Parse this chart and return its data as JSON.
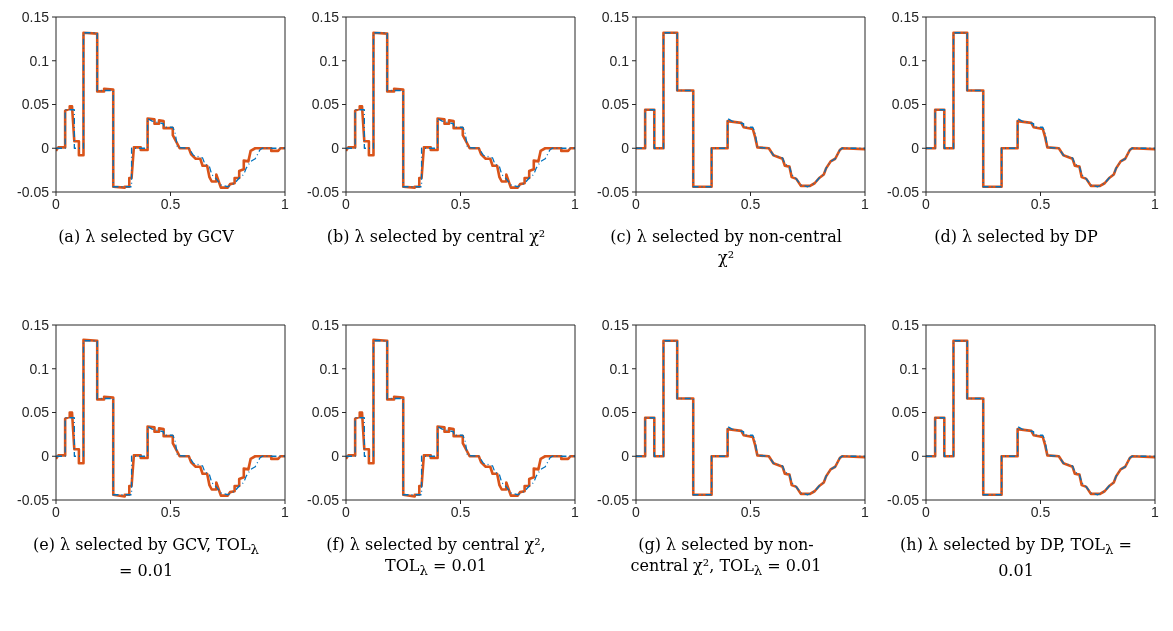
{
  "chart_data": [
    {
      "type": "line",
      "title": "(a) λ selected by GCV",
      "xlim": [
        0,
        1
      ],
      "ylim": [
        -0.05,
        0.15
      ],
      "xticks": [
        0,
        0.5,
        1
      ],
      "yticks": [
        -0.05,
        0,
        0.05,
        0.1,
        0.15
      ],
      "grid": false,
      "legend": false,
      "series": [
        {
          "color": "#0072bd",
          "line_style": "dashed",
          "x": [
            0,
            0.04,
            0.04,
            0.08,
            0.08,
            0.12,
            0.12,
            0.18,
            0.18,
            0.25,
            0.25,
            0.33,
            0.33,
            0.4,
            0.4,
            0.42,
            0.47,
            0.47,
            0.51,
            0.52,
            0.53,
            0.58,
            0.6,
            0.64,
            0.65,
            0.67,
            0.68,
            0.7,
            0.72,
            0.75,
            0.78,
            0.8,
            0.82,
            0.83,
            0.85,
            0.87,
            0.89,
            0.9,
            1
          ],
          "values": [
            0,
            0,
            0.044,
            0.044,
            0,
            0,
            0.132,
            0.132,
            0.066,
            0.066,
            -0.044,
            -0.044,
            0,
            0,
            0.034,
            0.031,
            0.028,
            0.024,
            0.024,
            0.018,
            0.001,
            0,
            -0.008,
            -0.011,
            -0.018,
            -0.021,
            -0.03,
            -0.035,
            -0.042,
            -0.044,
            -0.04,
            -0.034,
            -0.03,
            -0.023,
            -0.015,
            -0.012,
            -0.002,
            0,
            0
          ]
        },
        {
          "color": "#d95319",
          "line_style": "solid",
          "x": [
            0,
            0.01,
            0.04,
            0.04,
            0.06,
            0.06,
            0.07,
            0.08,
            0.1,
            0.1,
            0.12,
            0.12,
            0.18,
            0.18,
            0.21,
            0.21,
            0.25,
            0.25,
            0.3,
            0.3,
            0.32,
            0.32,
            0.33,
            0.34,
            0.37,
            0.37,
            0.4,
            0.4,
            0.43,
            0.43,
            0.45,
            0.45,
            0.47,
            0.47,
            0.51,
            0.51,
            0.54,
            0.58,
            0.59,
            0.61,
            0.63,
            0.64,
            0.66,
            0.67,
            0.68,
            0.7,
            0.7,
            0.72,
            0.75,
            0.76,
            0.78,
            0.78,
            0.8,
            0.8,
            0.82,
            0.82,
            0.84,
            0.85,
            0.87,
            0.94,
            0.94,
            0.97,
            0.98,
            1
          ],
          "values": [
            -0.003,
            0.001,
            0.001,
            0.043,
            0.045,
            0.048,
            0.048,
            0.008,
            0.008,
            -0.008,
            -0.008,
            0.132,
            0.131,
            0.065,
            0.065,
            0.068,
            0.067,
            -0.044,
            -0.045,
            -0.044,
            -0.044,
            -0.034,
            -0.034,
            0.001,
            0.001,
            -0.002,
            -0.002,
            0.034,
            0.033,
            0.028,
            0.028,
            0.032,
            0.031,
            0.023,
            0.023,
            0.015,
            0,
            0,
            -0.007,
            -0.012,
            -0.012,
            -0.02,
            -0.02,
            -0.033,
            -0.038,
            -0.038,
            -0.03,
            -0.045,
            -0.045,
            -0.041,
            -0.04,
            -0.034,
            -0.034,
            -0.026,
            -0.024,
            -0.014,
            -0.015,
            -0.003,
            0,
            0,
            -0.003,
            -0.003,
            0,
            0
          ]
        }
      ]
    },
    {
      "type": "line",
      "title": "(b) λ selected by central χ²",
      "xlim": [
        0,
        1
      ],
      "ylim": [
        -0.05,
        0.15
      ],
      "xticks": [
        0,
        0.5,
        1
      ],
      "yticks": [
        -0.05,
        0,
        0.05,
        0.1,
        0.15
      ],
      "grid": false,
      "legend": false,
      "series": [
        {
          "color": "#0072bd",
          "line_style": "dashed",
          "x": [
            0,
            0.04,
            0.04,
            0.08,
            0.08,
            0.12,
            0.12,
            0.18,
            0.18,
            0.25,
            0.25,
            0.33,
            0.33,
            0.4,
            0.4,
            0.42,
            0.47,
            0.47,
            0.51,
            0.52,
            0.53,
            0.58,
            0.6,
            0.64,
            0.65,
            0.67,
            0.68,
            0.7,
            0.72,
            0.75,
            0.78,
            0.8,
            0.82,
            0.83,
            0.85,
            0.87,
            0.89,
            0.9,
            1
          ],
          "values": [
            0,
            0,
            0.044,
            0.044,
            0,
            0,
            0.132,
            0.132,
            0.066,
            0.066,
            -0.044,
            -0.044,
            0,
            0,
            0.034,
            0.031,
            0.028,
            0.024,
            0.024,
            0.018,
            0.001,
            0,
            -0.008,
            -0.011,
            -0.018,
            -0.021,
            -0.03,
            -0.035,
            -0.042,
            -0.044,
            -0.04,
            -0.034,
            -0.03,
            -0.023,
            -0.015,
            -0.012,
            -0.002,
            0,
            0
          ]
        },
        {
          "color": "#d95319",
          "line_style": "solid",
          "x": [
            0,
            0.01,
            0.04,
            0.04,
            0.06,
            0.06,
            0.07,
            0.08,
            0.1,
            0.1,
            0.12,
            0.12,
            0.18,
            0.18,
            0.21,
            0.21,
            0.25,
            0.25,
            0.3,
            0.3,
            0.32,
            0.32,
            0.33,
            0.34,
            0.37,
            0.37,
            0.4,
            0.4,
            0.43,
            0.43,
            0.45,
            0.45,
            0.47,
            0.47,
            0.51,
            0.51,
            0.54,
            0.58,
            0.59,
            0.61,
            0.63,
            0.64,
            0.66,
            0.67,
            0.68,
            0.7,
            0.7,
            0.72,
            0.75,
            0.76,
            0.78,
            0.78,
            0.8,
            0.8,
            0.82,
            0.82,
            0.84,
            0.85,
            0.87,
            0.94,
            0.94,
            0.97,
            0.98,
            1
          ],
          "values": [
            -0.003,
            0.001,
            0.001,
            0.043,
            0.045,
            0.048,
            0.048,
            0.008,
            0.008,
            -0.008,
            -0.008,
            0.132,
            0.131,
            0.065,
            0.065,
            0.068,
            0.067,
            -0.044,
            -0.045,
            -0.044,
            -0.044,
            -0.034,
            -0.034,
            0.001,
            0.001,
            -0.002,
            -0.002,
            0.034,
            0.033,
            0.028,
            0.028,
            0.032,
            0.031,
            0.023,
            0.023,
            0.015,
            0,
            0,
            -0.007,
            -0.012,
            -0.012,
            -0.02,
            -0.02,
            -0.033,
            -0.038,
            -0.038,
            -0.03,
            -0.045,
            -0.045,
            -0.041,
            -0.04,
            -0.034,
            -0.034,
            -0.026,
            -0.024,
            -0.014,
            -0.015,
            -0.003,
            0,
            0,
            -0.003,
            -0.003,
            0,
            0
          ]
        }
      ]
    },
    {
      "type": "line",
      "title": "(c) λ selected by non-central χ²",
      "xlim": [
        0,
        1
      ],
      "ylim": [
        -0.05,
        0.15
      ],
      "xticks": [
        0,
        0.5,
        1
      ],
      "yticks": [
        -0.05,
        0,
        0.05,
        0.1,
        0.15
      ],
      "grid": false,
      "legend": false,
      "series": [
        {
          "color": "#0072bd",
          "line_style": "dashed",
          "x": [
            0,
            0.04,
            0.04,
            0.08,
            0.08,
            0.12,
            0.12,
            0.18,
            0.18,
            0.25,
            0.25,
            0.33,
            0.33,
            0.4,
            0.4,
            0.42,
            0.47,
            0.47,
            0.51,
            0.52,
            0.53,
            0.58,
            0.6,
            0.64,
            0.65,
            0.67,
            0.68,
            0.7,
            0.72,
            0.75,
            0.78,
            0.8,
            0.82,
            0.83,
            0.85,
            0.87,
            0.89,
            0.9,
            1
          ],
          "values": [
            0,
            0,
            0.044,
            0.044,
            0,
            0,
            0.132,
            0.132,
            0.066,
            0.066,
            -0.044,
            -0.044,
            0,
            0,
            0.034,
            0.031,
            0.028,
            0.024,
            0.024,
            0.018,
            0.001,
            0,
            -0.008,
            -0.011,
            -0.018,
            -0.021,
            -0.03,
            -0.035,
            -0.042,
            -0.044,
            -0.04,
            -0.034,
            -0.03,
            -0.023,
            -0.015,
            -0.012,
            -0.002,
            0,
            0
          ]
        },
        {
          "color": "#d95319",
          "line_style": "solid",
          "x": [
            0,
            0.04,
            0.04,
            0.08,
            0.08,
            0.12,
            0.12,
            0.18,
            0.18,
            0.25,
            0.25,
            0.33,
            0.33,
            0.4,
            0.4,
            0.46,
            0.47,
            0.51,
            0.52,
            0.53,
            0.58,
            0.6,
            0.64,
            0.65,
            0.67,
            0.68,
            0.7,
            0.72,
            0.76,
            0.78,
            0.8,
            0.82,
            0.83,
            0.85,
            0.87,
            0.89,
            0.9,
            1
          ],
          "values": [
            0,
            0,
            0.044,
            0.044,
            0,
            0,
            0.132,
            0.132,
            0.066,
            0.066,
            -0.044,
            -0.044,
            0,
            0,
            0.031,
            0.029,
            0.024,
            0.022,
            0.013,
            0.001,
            0,
            -0.008,
            -0.012,
            -0.02,
            -0.021,
            -0.033,
            -0.035,
            -0.043,
            -0.043,
            -0.04,
            -0.034,
            -0.03,
            -0.023,
            -0.015,
            -0.012,
            -0.002,
            0,
            -0.001
          ]
        }
      ]
    },
    {
      "type": "line",
      "title": "(d) λ selected by DP",
      "xlim": [
        0,
        1
      ],
      "ylim": [
        -0.05,
        0.15
      ],
      "xticks": [
        0,
        0.5,
        1
      ],
      "yticks": [
        -0.05,
        0,
        0.05,
        0.1,
        0.15
      ],
      "grid": false,
      "legend": false,
      "series": [
        {
          "color": "#0072bd",
          "line_style": "dashed",
          "x": [
            0,
            0.04,
            0.04,
            0.08,
            0.08,
            0.12,
            0.12,
            0.18,
            0.18,
            0.25,
            0.25,
            0.33,
            0.33,
            0.4,
            0.4,
            0.42,
            0.47,
            0.47,
            0.51,
            0.52,
            0.53,
            0.58,
            0.6,
            0.64,
            0.65,
            0.67,
            0.68,
            0.7,
            0.72,
            0.75,
            0.78,
            0.8,
            0.82,
            0.83,
            0.85,
            0.87,
            0.89,
            0.9,
            1
          ],
          "values": [
            0,
            0,
            0.044,
            0.044,
            0,
            0,
            0.132,
            0.132,
            0.066,
            0.066,
            -0.044,
            -0.044,
            0,
            0,
            0.034,
            0.031,
            0.028,
            0.024,
            0.024,
            0.018,
            0.001,
            0,
            -0.008,
            -0.011,
            -0.018,
            -0.021,
            -0.03,
            -0.035,
            -0.042,
            -0.044,
            -0.04,
            -0.034,
            -0.03,
            -0.023,
            -0.015,
            -0.012,
            -0.002,
            0,
            0
          ]
        },
        {
          "color": "#d95319",
          "line_style": "solid",
          "x": [
            0,
            0.04,
            0.04,
            0.08,
            0.08,
            0.12,
            0.12,
            0.18,
            0.18,
            0.25,
            0.25,
            0.33,
            0.33,
            0.4,
            0.4,
            0.46,
            0.47,
            0.51,
            0.52,
            0.53,
            0.58,
            0.6,
            0.64,
            0.65,
            0.67,
            0.68,
            0.7,
            0.72,
            0.76,
            0.78,
            0.8,
            0.82,
            0.83,
            0.85,
            0.87,
            0.89,
            0.9,
            1
          ],
          "values": [
            0,
            0,
            0.044,
            0.044,
            0,
            0,
            0.132,
            0.132,
            0.066,
            0.066,
            -0.044,
            -0.044,
            0,
            0,
            0.031,
            0.029,
            0.024,
            0.022,
            0.013,
            0.001,
            0,
            -0.008,
            -0.012,
            -0.02,
            -0.021,
            -0.033,
            -0.035,
            -0.043,
            -0.043,
            -0.04,
            -0.034,
            -0.03,
            -0.023,
            -0.015,
            -0.012,
            -0.002,
            0,
            -0.001
          ]
        }
      ]
    },
    {
      "type": "line",
      "title": "(e) λ selected by GCV, TOL$_{λ}$ = 0.01",
      "xlim": [
        0,
        1
      ],
      "ylim": [
        -0.05,
        0.15
      ],
      "xticks": [
        0,
        0.5,
        1
      ],
      "yticks": [
        -0.05,
        0,
        0.05,
        0.1,
        0.15
      ],
      "grid": false,
      "legend": false,
      "series": [
        {
          "color": "#0072bd",
          "line_style": "dashed",
          "x": [
            0,
            0.04,
            0.04,
            0.08,
            0.08,
            0.12,
            0.12,
            0.18,
            0.18,
            0.25,
            0.25,
            0.33,
            0.33,
            0.4,
            0.4,
            0.42,
            0.47,
            0.47,
            0.51,
            0.52,
            0.53,
            0.58,
            0.6,
            0.64,
            0.65,
            0.67,
            0.68,
            0.7,
            0.72,
            0.75,
            0.78,
            0.8,
            0.82,
            0.83,
            0.85,
            0.87,
            0.89,
            0.9,
            1
          ],
          "values": [
            0,
            0,
            0.044,
            0.044,
            0,
            0,
            0.132,
            0.132,
            0.066,
            0.066,
            -0.044,
            -0.044,
            0,
            0,
            0.034,
            0.031,
            0.028,
            0.024,
            0.024,
            0.018,
            0.001,
            0,
            -0.008,
            -0.011,
            -0.018,
            -0.021,
            -0.03,
            -0.035,
            -0.042,
            -0.044,
            -0.04,
            -0.034,
            -0.03,
            -0.023,
            -0.015,
            -0.012,
            -0.002,
            0,
            0
          ]
        },
        {
          "color": "#d95319",
          "line_style": "solid",
          "x": [
            0,
            0.01,
            0.04,
            0.04,
            0.06,
            0.06,
            0.07,
            0.08,
            0.1,
            0.1,
            0.12,
            0.12,
            0.18,
            0.18,
            0.21,
            0.21,
            0.25,
            0.25,
            0.3,
            0.3,
            0.32,
            0.32,
            0.33,
            0.34,
            0.37,
            0.37,
            0.4,
            0.4,
            0.43,
            0.43,
            0.45,
            0.45,
            0.47,
            0.47,
            0.51,
            0.51,
            0.54,
            0.58,
            0.59,
            0.61,
            0.63,
            0.64,
            0.66,
            0.67,
            0.68,
            0.7,
            0.7,
            0.72,
            0.75,
            0.76,
            0.78,
            0.78,
            0.8,
            0.8,
            0.82,
            0.82,
            0.84,
            0.85,
            0.87,
            0.94,
            0.94,
            0.97,
            0.98,
            1
          ],
          "values": [
            -0.003,
            0.001,
            0.001,
            0.043,
            0.045,
            0.05,
            0.05,
            0.008,
            0.008,
            -0.008,
            -0.008,
            0.133,
            0.132,
            0.065,
            0.065,
            0.068,
            0.067,
            -0.044,
            -0.046,
            -0.044,
            -0.044,
            -0.034,
            -0.034,
            0.001,
            0.001,
            -0.002,
            -0.002,
            0.034,
            0.033,
            0.028,
            0.028,
            0.032,
            0.031,
            0.023,
            0.023,
            0.015,
            0,
            0,
            -0.007,
            -0.012,
            -0.012,
            -0.02,
            -0.02,
            -0.033,
            -0.038,
            -0.038,
            -0.03,
            -0.045,
            -0.045,
            -0.041,
            -0.04,
            -0.034,
            -0.034,
            -0.026,
            -0.024,
            -0.014,
            -0.015,
            -0.003,
            0,
            0,
            -0.003,
            -0.003,
            0,
            0
          ]
        }
      ]
    },
    {
      "type": "line",
      "title": "(f) λ selected by central χ², TOL$_{λ}$ = 0.01",
      "xlim": [
        0,
        1
      ],
      "ylim": [
        -0.05,
        0.15
      ],
      "xticks": [
        0,
        0.5,
        1
      ],
      "yticks": [
        -0.05,
        0,
        0.05,
        0.1,
        0.15
      ],
      "grid": false,
      "legend": false,
      "series": [
        {
          "color": "#0072bd",
          "line_style": "dashed",
          "x": [
            0,
            0.04,
            0.04,
            0.08,
            0.08,
            0.12,
            0.12,
            0.18,
            0.18,
            0.25,
            0.25,
            0.33,
            0.33,
            0.4,
            0.4,
            0.42,
            0.47,
            0.47,
            0.51,
            0.52,
            0.53,
            0.58,
            0.6,
            0.64,
            0.65,
            0.67,
            0.68,
            0.7,
            0.72,
            0.75,
            0.78,
            0.8,
            0.82,
            0.83,
            0.85,
            0.87,
            0.89,
            0.9,
            1
          ],
          "values": [
            0,
            0,
            0.044,
            0.044,
            0,
            0,
            0.132,
            0.132,
            0.066,
            0.066,
            -0.044,
            -0.044,
            0,
            0,
            0.034,
            0.031,
            0.028,
            0.024,
            0.024,
            0.018,
            0.001,
            0,
            -0.008,
            -0.011,
            -0.018,
            -0.021,
            -0.03,
            -0.035,
            -0.042,
            -0.044,
            -0.04,
            -0.034,
            -0.03,
            -0.023,
            -0.015,
            -0.012,
            -0.002,
            0,
            0
          ]
        },
        {
          "color": "#d95319",
          "line_style": "solid",
          "x": [
            0,
            0.01,
            0.04,
            0.04,
            0.06,
            0.06,
            0.07,
            0.08,
            0.1,
            0.1,
            0.12,
            0.12,
            0.18,
            0.18,
            0.21,
            0.21,
            0.25,
            0.25,
            0.3,
            0.3,
            0.32,
            0.32,
            0.33,
            0.34,
            0.37,
            0.37,
            0.4,
            0.4,
            0.43,
            0.43,
            0.45,
            0.45,
            0.47,
            0.47,
            0.51,
            0.51,
            0.54,
            0.58,
            0.59,
            0.61,
            0.63,
            0.64,
            0.66,
            0.67,
            0.68,
            0.7,
            0.7,
            0.72,
            0.75,
            0.76,
            0.78,
            0.78,
            0.8,
            0.8,
            0.82,
            0.82,
            0.84,
            0.85,
            0.87,
            0.94,
            0.94,
            0.97,
            0.98,
            1
          ],
          "values": [
            -0.003,
            0.001,
            0.001,
            0.043,
            0.045,
            0.05,
            0.05,
            0.008,
            0.008,
            -0.008,
            -0.008,
            0.133,
            0.132,
            0.065,
            0.065,
            0.068,
            0.067,
            -0.044,
            -0.046,
            -0.044,
            -0.044,
            -0.034,
            -0.034,
            0.001,
            0.001,
            -0.002,
            -0.002,
            0.034,
            0.033,
            0.028,
            0.028,
            0.032,
            0.031,
            0.023,
            0.023,
            0.015,
            0,
            0,
            -0.007,
            -0.012,
            -0.012,
            -0.02,
            -0.02,
            -0.033,
            -0.038,
            -0.038,
            -0.03,
            -0.045,
            -0.045,
            -0.041,
            -0.04,
            -0.034,
            -0.034,
            -0.026,
            -0.024,
            -0.014,
            -0.015,
            -0.003,
            0,
            0,
            -0.003,
            -0.003,
            0,
            0
          ]
        }
      ]
    },
    {
      "type": "line",
      "title": "(g) λ selected by non-central χ², TOL$_{λ}$ = 0.01",
      "xlim": [
        0,
        1
      ],
      "ylim": [
        -0.05,
        0.15
      ],
      "xticks": [
        0,
        0.5,
        1
      ],
      "yticks": [
        -0.05,
        0,
        0.05,
        0.1,
        0.15
      ],
      "grid": false,
      "legend": false,
      "series": [
        {
          "color": "#0072bd",
          "line_style": "dashed",
          "x": [
            0,
            0.04,
            0.04,
            0.08,
            0.08,
            0.12,
            0.12,
            0.18,
            0.18,
            0.25,
            0.25,
            0.33,
            0.33,
            0.4,
            0.4,
            0.42,
            0.47,
            0.47,
            0.51,
            0.52,
            0.53,
            0.58,
            0.6,
            0.64,
            0.65,
            0.67,
            0.68,
            0.7,
            0.72,
            0.75,
            0.78,
            0.8,
            0.82,
            0.83,
            0.85,
            0.87,
            0.89,
            0.9,
            1
          ],
          "values": [
            0,
            0,
            0.044,
            0.044,
            0,
            0,
            0.132,
            0.132,
            0.066,
            0.066,
            -0.044,
            -0.044,
            0,
            0,
            0.034,
            0.031,
            0.028,
            0.024,
            0.024,
            0.018,
            0.001,
            0,
            -0.008,
            -0.011,
            -0.018,
            -0.021,
            -0.03,
            -0.035,
            -0.042,
            -0.044,
            -0.04,
            -0.034,
            -0.03,
            -0.023,
            -0.015,
            -0.012,
            -0.002,
            0,
            0
          ]
        },
        {
          "color": "#d95319",
          "line_style": "solid",
          "x": [
            0,
            0.04,
            0.04,
            0.08,
            0.08,
            0.12,
            0.12,
            0.18,
            0.18,
            0.25,
            0.25,
            0.33,
            0.33,
            0.4,
            0.4,
            0.46,
            0.47,
            0.51,
            0.52,
            0.53,
            0.58,
            0.6,
            0.64,
            0.65,
            0.67,
            0.68,
            0.7,
            0.72,
            0.76,
            0.78,
            0.8,
            0.82,
            0.83,
            0.85,
            0.87,
            0.89,
            0.9,
            1
          ],
          "values": [
            0,
            0,
            0.044,
            0.044,
            0,
            0,
            0.132,
            0.132,
            0.066,
            0.066,
            -0.044,
            -0.044,
            0,
            0,
            0.031,
            0.029,
            0.024,
            0.022,
            0.013,
            0.001,
            0,
            -0.008,
            -0.012,
            -0.02,
            -0.021,
            -0.033,
            -0.035,
            -0.043,
            -0.043,
            -0.04,
            -0.034,
            -0.03,
            -0.023,
            -0.015,
            -0.012,
            -0.002,
            0,
            -0.001
          ]
        }
      ]
    },
    {
      "type": "line",
      "title": "(h) λ selected by DP, TOL$_{λ}$ = 0.01",
      "xlim": [
        0,
        1
      ],
      "ylim": [
        -0.05,
        0.15
      ],
      "xticks": [
        0,
        0.5,
        1
      ],
      "yticks": [
        -0.05,
        0,
        0.05,
        0.1,
        0.15
      ],
      "grid": false,
      "legend": false,
      "series": [
        {
          "color": "#0072bd",
          "line_style": "dashed",
          "x": [
            0,
            0.04,
            0.04,
            0.08,
            0.08,
            0.12,
            0.12,
            0.18,
            0.18,
            0.25,
            0.25,
            0.33,
            0.33,
            0.4,
            0.4,
            0.42,
            0.47,
            0.47,
            0.51,
            0.52,
            0.53,
            0.58,
            0.6,
            0.64,
            0.65,
            0.67,
            0.68,
            0.7,
            0.72,
            0.75,
            0.78,
            0.8,
            0.82,
            0.83,
            0.85,
            0.87,
            0.89,
            0.9,
            1
          ],
          "values": [
            0,
            0,
            0.044,
            0.044,
            0,
            0,
            0.132,
            0.132,
            0.066,
            0.066,
            -0.044,
            -0.044,
            0,
            0,
            0.034,
            0.031,
            0.028,
            0.024,
            0.024,
            0.018,
            0.001,
            0,
            -0.008,
            -0.011,
            -0.018,
            -0.021,
            -0.03,
            -0.035,
            -0.042,
            -0.044,
            -0.04,
            -0.034,
            -0.03,
            -0.023,
            -0.015,
            -0.012,
            -0.002,
            0,
            0
          ]
        },
        {
          "color": "#d95319",
          "line_style": "solid",
          "x": [
            0,
            0.04,
            0.04,
            0.08,
            0.08,
            0.12,
            0.12,
            0.18,
            0.18,
            0.25,
            0.25,
            0.33,
            0.33,
            0.4,
            0.4,
            0.46,
            0.47,
            0.51,
            0.52,
            0.53,
            0.58,
            0.6,
            0.64,
            0.65,
            0.67,
            0.68,
            0.7,
            0.72,
            0.76,
            0.78,
            0.8,
            0.82,
            0.83,
            0.85,
            0.87,
            0.89,
            0.9,
            1
          ],
          "values": [
            0,
            0,
            0.044,
            0.044,
            0,
            0,
            0.132,
            0.132,
            0.066,
            0.066,
            -0.044,
            -0.044,
            0,
            0,
            0.031,
            0.029,
            0.024,
            0.022,
            0.013,
            0.001,
            0,
            -0.008,
            -0.012,
            -0.02,
            -0.021,
            -0.033,
            -0.035,
            -0.043,
            -0.043,
            -0.04,
            -0.034,
            -0.03,
            -0.023,
            -0.015,
            -0.012,
            -0.002,
            0,
            -0.001
          ]
        }
      ]
    }
  ]
}
